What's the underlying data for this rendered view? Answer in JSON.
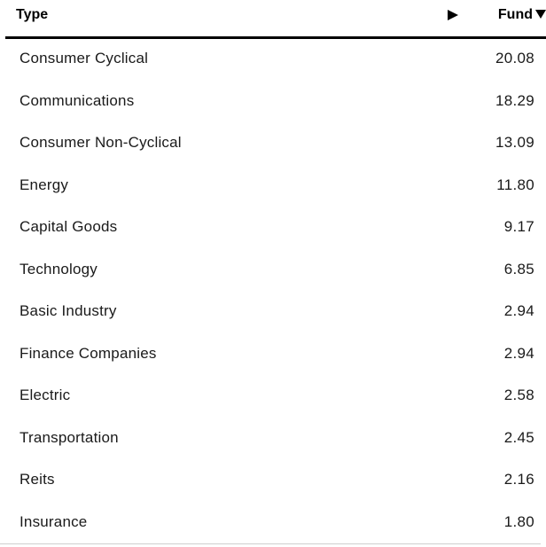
{
  "table": {
    "header": {
      "type_label": "Type",
      "fund_label": "Fund"
    },
    "rows": [
      {
        "type": "Consumer Cyclical",
        "fund": "20.08"
      },
      {
        "type": "Communications",
        "fund": "18.29"
      },
      {
        "type": "Consumer Non-Cyclical",
        "fund": "13.09"
      },
      {
        "type": "Energy",
        "fund": "11.80"
      },
      {
        "type": "Capital Goods",
        "fund": "9.17"
      },
      {
        "type": "Technology",
        "fund": "6.85"
      },
      {
        "type": "Basic Industry",
        "fund": "2.94"
      },
      {
        "type": "Finance Companies",
        "fund": "2.94"
      },
      {
        "type": "Electric",
        "fund": "2.58"
      },
      {
        "type": "Transportation",
        "fund": "2.45"
      },
      {
        "type": "Reits",
        "fund": "2.16"
      },
      {
        "type": "Insurance",
        "fund": "1.80"
      }
    ]
  }
}
